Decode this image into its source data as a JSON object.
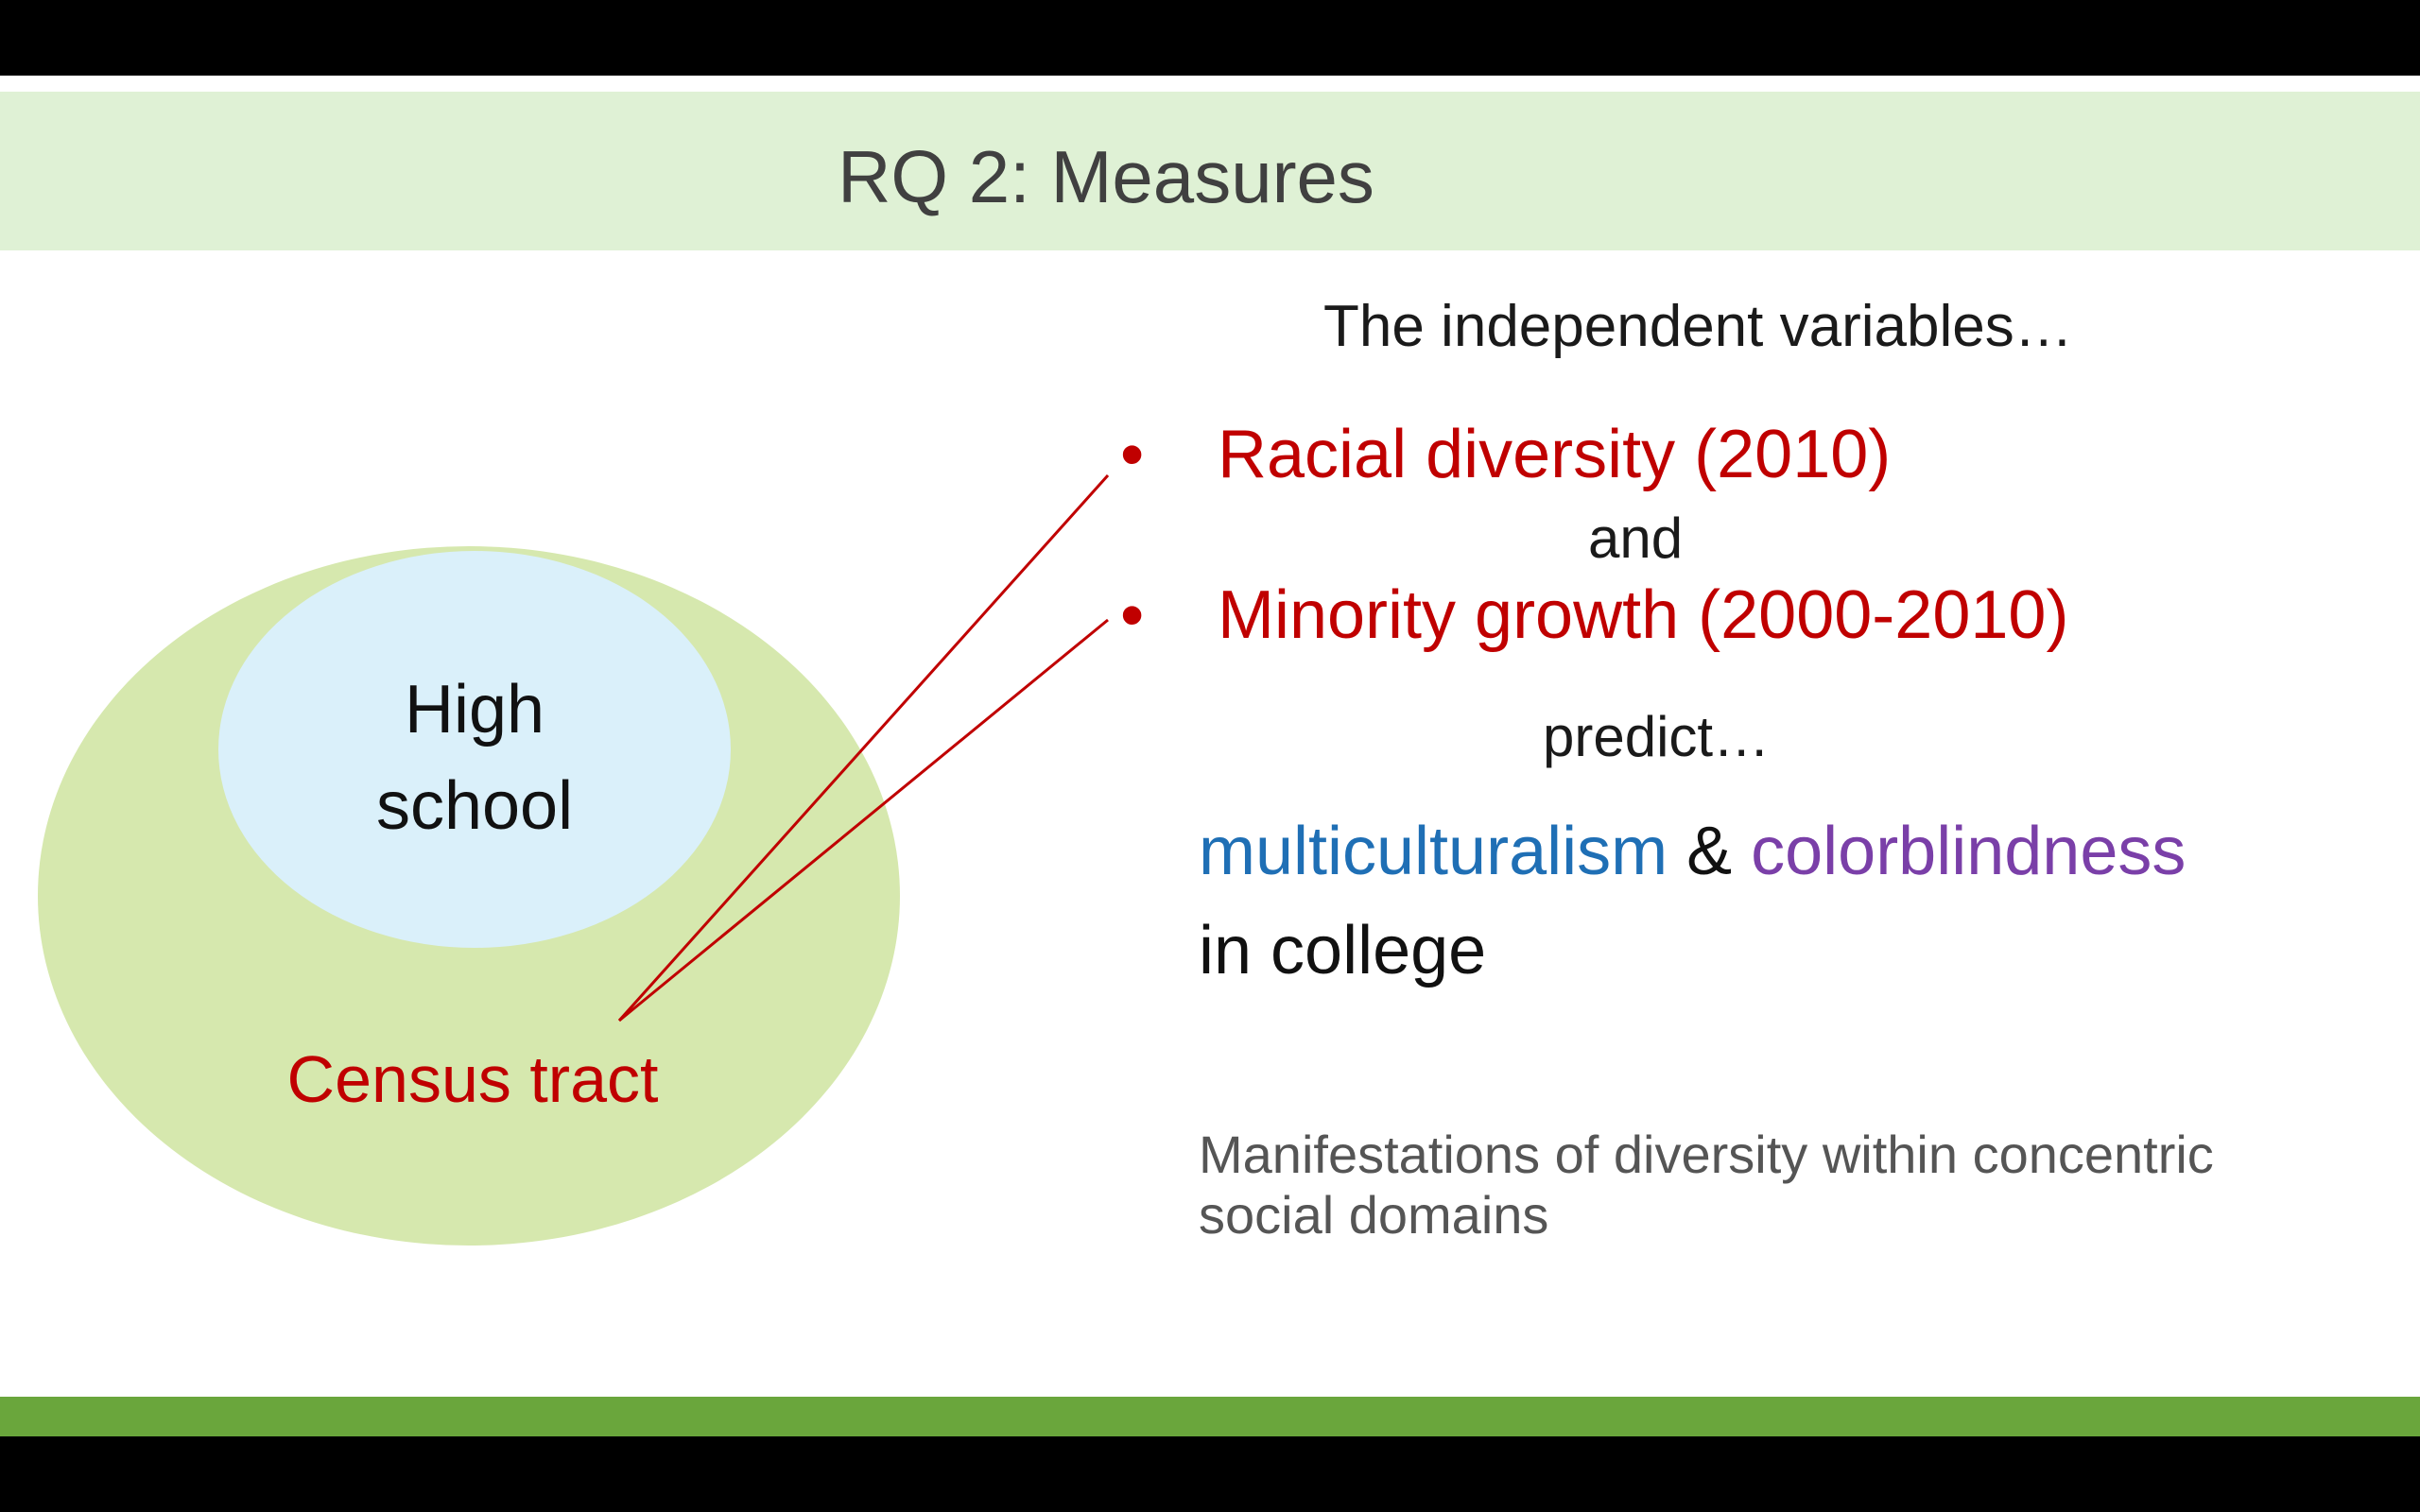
{
  "slide": {
    "title": "RQ 2: Measures",
    "intro": "The independent variables…",
    "bullets": [
      {
        "marker": "•",
        "text": "Racial diversity (2010)"
      },
      {
        "marker": "•",
        "text": "Minority growth (2000-2010)"
      }
    ],
    "conjunction": "and",
    "verb": "predict…",
    "outcome": {
      "term1": "multiculturalism",
      "joiner": " & ",
      "term2": "colorblindness",
      "suffix": "in college"
    },
    "note": "Manifestations of diversity within concentric social domains"
  },
  "diagram": {
    "inner_label_line1": "High",
    "inner_label_line2": "school",
    "outer_label": "Census tract"
  },
  "colors": {
    "title_band": "#dff1d5",
    "bottom_band": "#6aa63c",
    "outer_ellipse": "#d6e8ae",
    "inner_ellipse": "#daf0fa",
    "accent_red": "#c00000",
    "multiculturalism": "#1f6fb5",
    "colorblindness": "#7a3fa8"
  }
}
